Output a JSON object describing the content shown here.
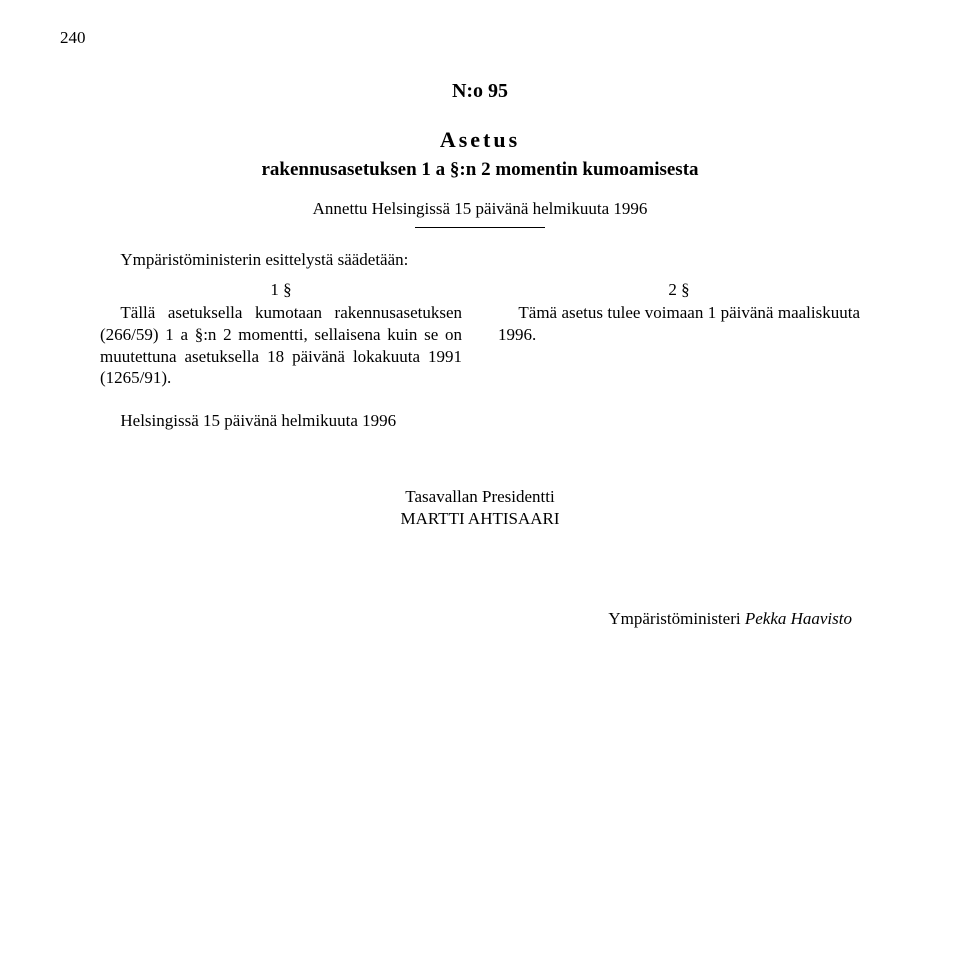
{
  "page_number": "240",
  "doc_number": "N:o 95",
  "doc_type": "Asetus",
  "doc_title": "rakennusasetuksen 1 a §:n 2 momentin kumoamisesta",
  "issued": "Annettu Helsingissä 15 päivänä helmikuuta 1996",
  "intro": "Ympäristöministerin esittelystä säädetään:",
  "left": {
    "section": "1 §",
    "text": "Tällä asetuksella kumotaan rakennusasetuksen (266/59) 1 a §:n 2 momentti, sellaisena kuin se on muutettuna asetuksella 18 päivänä lokakuuta 1991 (1265/91)."
  },
  "right": {
    "section": "2 §",
    "text": "Tämä asetus tulee voimaan 1 päivänä maaliskuuta 1996."
  },
  "signed_place": "Helsingissä 15 päivänä helmikuuta 1996",
  "president": {
    "title": "Tasavallan Presidentti",
    "name": "MARTTI AHTISAARI"
  },
  "minister": {
    "title": "Ympäristöministeri ",
    "name": "Pekka Haavisto"
  }
}
